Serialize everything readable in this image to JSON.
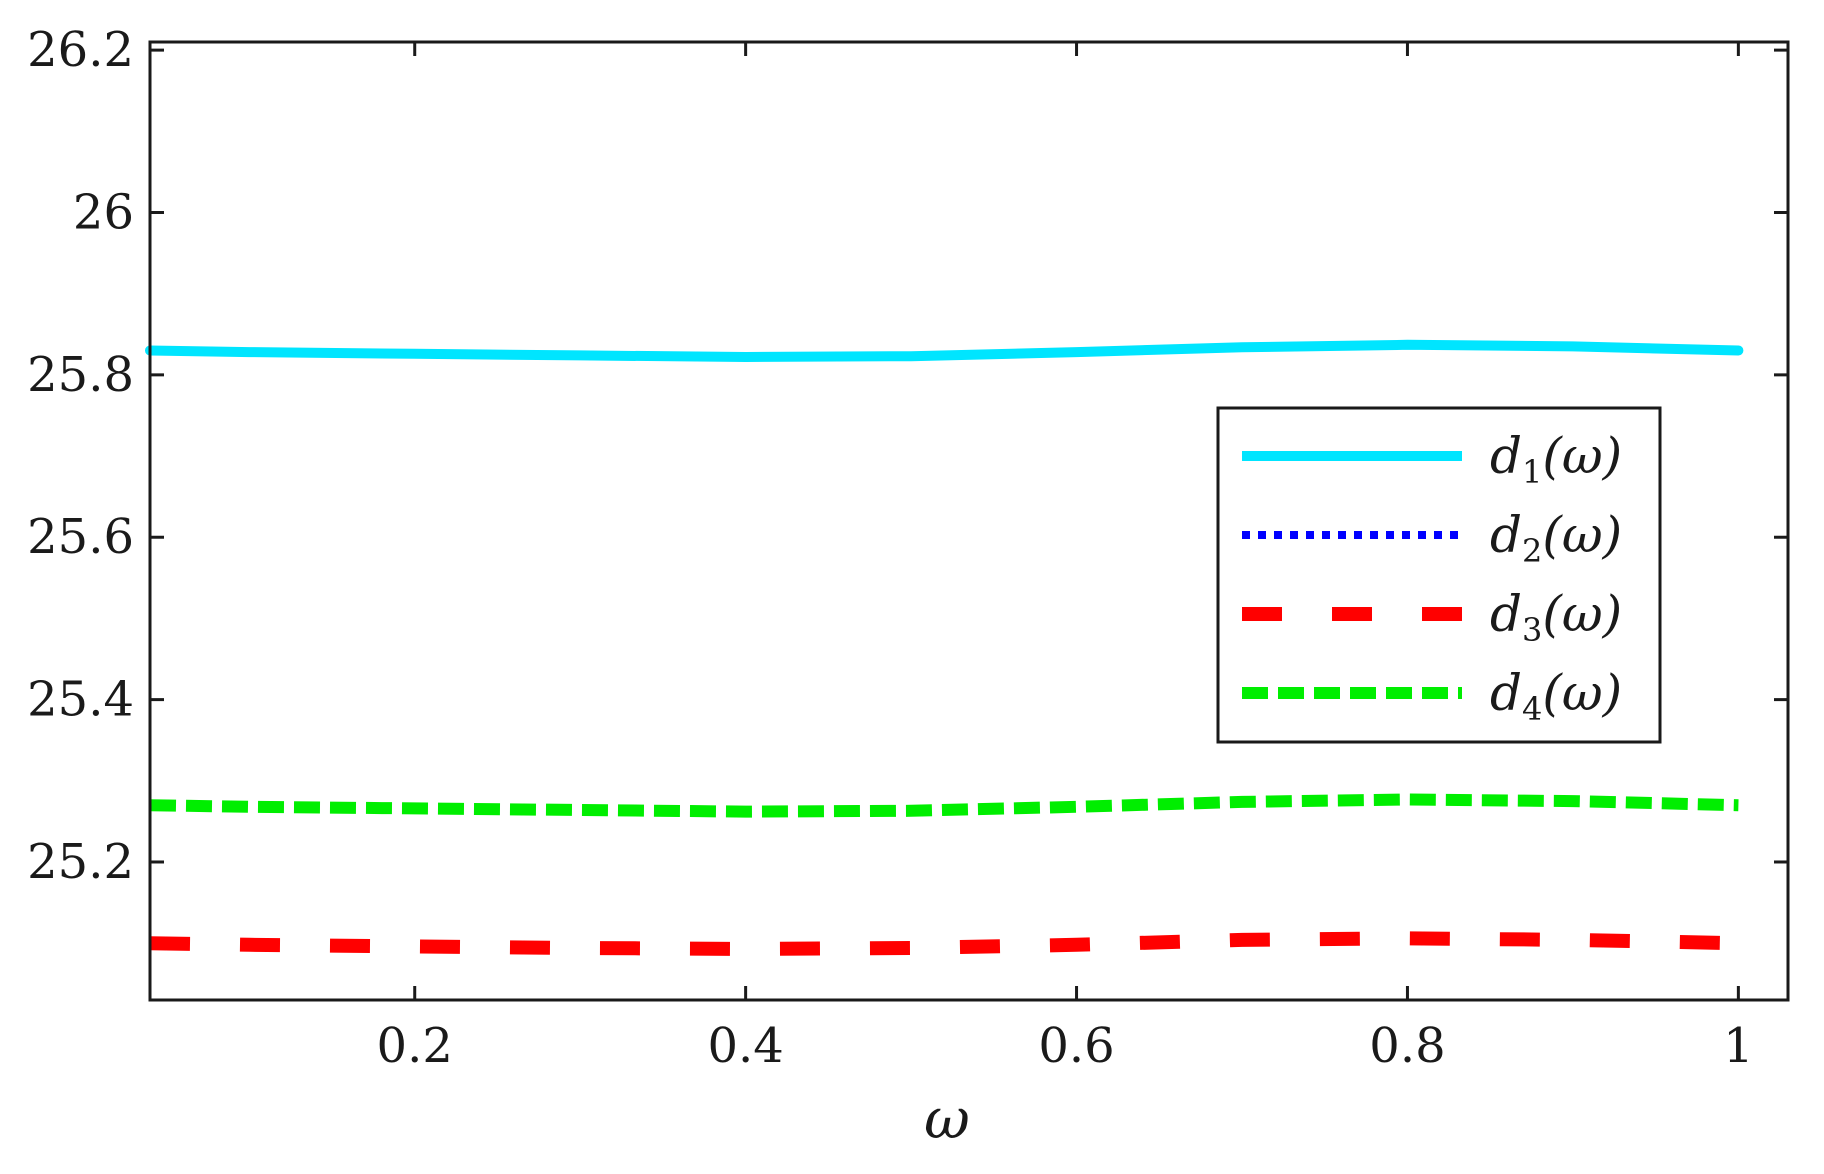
{
  "chart_data": {
    "type": "line",
    "xlabel": "ω",
    "ylabel": "",
    "xlim": [
      0.04,
      1.03
    ],
    "ylim": [
      25.03,
      26.21
    ],
    "xticks": [
      0.2,
      0.4,
      0.6,
      0.8,
      1
    ],
    "xtick_labels": [
      "0.2",
      "0.4",
      "0.6",
      "0.8",
      "1"
    ],
    "yticks": [
      25.2,
      25.4,
      25.6,
      25.8,
      26,
      26.2
    ],
    "ytick_labels": [
      "25.2",
      "25.4",
      "25.6",
      "25.8",
      "26",
      "26.2"
    ],
    "grid": false,
    "legend_position": "center-right",
    "series": [
      {
        "name": "d1(ω)",
        "label_base": "d",
        "label_sub": "1",
        "label_arg": "(ω)",
        "color": "#00e5ff",
        "style": "solid",
        "x": [
          0.04,
          0.1,
          0.2,
          0.3,
          0.4,
          0.5,
          0.6,
          0.7,
          0.8,
          0.9,
          1.0
        ],
        "y": [
          25.83,
          25.828,
          25.826,
          25.824,
          25.822,
          25.823,
          25.828,
          25.834,
          25.837,
          25.835,
          25.83
        ]
      },
      {
        "name": "d2(ω)",
        "label_base": "d",
        "label_sub": "2",
        "label_arg": "(ω)",
        "color": "#0000ff",
        "style": "dotted",
        "x": [
          0.04,
          0.1,
          0.2,
          0.3,
          0.4,
          0.5,
          0.6,
          0.7,
          0.8,
          0.9,
          1.0
        ],
        "y": [
          25.83,
          25.828,
          25.826,
          25.824,
          25.822,
          25.823,
          25.828,
          25.834,
          25.837,
          25.835,
          25.83
        ]
      },
      {
        "name": "d3(ω)",
        "label_base": "d",
        "label_sub": "3",
        "label_arg": "(ω)",
        "color": "#ff0000",
        "style": "dashed",
        "x": [
          0.04,
          0.1,
          0.2,
          0.3,
          0.4,
          0.5,
          0.6,
          0.7,
          0.8,
          0.9,
          1.0
        ],
        "y": [
          25.1,
          25.098,
          25.096,
          25.094,
          25.093,
          25.094,
          25.098,
          25.104,
          25.106,
          25.104,
          25.1
        ]
      },
      {
        "name": "d4(ω)",
        "label_base": "d",
        "label_sub": "4",
        "label_arg": "(ω)",
        "color": "#00ee00",
        "style": "dashdot",
        "x": [
          0.04,
          0.1,
          0.2,
          0.3,
          0.4,
          0.5,
          0.6,
          0.7,
          0.8,
          0.9,
          1.0
        ],
        "y": [
          25.27,
          25.268,
          25.266,
          25.264,
          25.262,
          25.263,
          25.268,
          25.274,
          25.277,
          25.275,
          25.27
        ]
      }
    ]
  }
}
